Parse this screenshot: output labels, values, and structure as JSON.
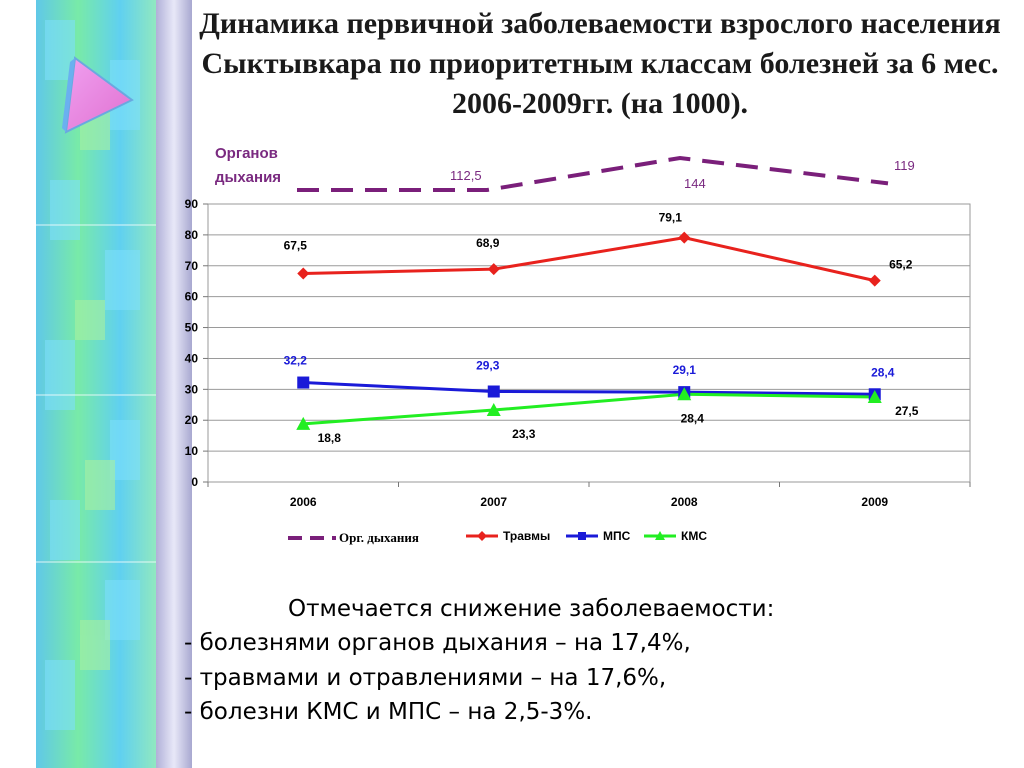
{
  "title": "Динамика первичной заболеваемости взрослого населения Сыктывкара по приоритетным классам болезней за 6 мес. 2006-2009гг. (на 1000).",
  "colors": {
    "org": "#7a1f7a",
    "trauma": "#e8221d",
    "mps": "#1a1ad8",
    "kms": "#22ee22",
    "org_label": "#7a2a80",
    "mps_label": "#1a1ad8"
  },
  "chart_data": [
    {
      "type": "line",
      "label": "Органов дыхания",
      "x": [
        "2006",
        "2007",
        "2008",
        "2009"
      ],
      "series": [
        {
          "name": "Орг. дыхания",
          "values": [
            null,
            112.5,
            144,
            119
          ],
          "style": "dashed"
        }
      ],
      "value_labels": [
        "",
        "112,5",
        "144",
        "119"
      ]
    },
    {
      "type": "line",
      "categories": [
        "2006",
        "2007",
        "2008",
        "2009"
      ],
      "ylim": [
        0,
        90
      ],
      "yticks": [
        "0",
        "10",
        "20",
        "30",
        "40",
        "50",
        "60",
        "70",
        "80",
        "90"
      ],
      "grid": true,
      "legend": "bottom",
      "series": [
        {
          "name": "Травмы",
          "values": [
            67.5,
            68.9,
            79.1,
            65.2
          ],
          "labels": [
            "67,5",
            "68,9",
            "79,1",
            "65,2"
          ],
          "marker": "diamond"
        },
        {
          "name": "МПС",
          "values": [
            32.2,
            29.3,
            29.1,
            28.4
          ],
          "labels": [
            "32,2",
            "29,3",
            "29,1",
            "28,4"
          ],
          "marker": "square"
        },
        {
          "name": "КМС",
          "values": [
            18.8,
            23.3,
            28.4,
            27.5
          ],
          "labels": [
            "18,8",
            "23,3",
            "28,4",
            "27,5"
          ],
          "marker": "triangle"
        }
      ]
    }
  ],
  "notes": {
    "heading": "Отмечается снижение заболеваемости:",
    "items": [
      "- болезнями органов дыхания – на 17,4%,",
      "- травмами и отравлениями – на 17,6%,",
      "- болезни КМС и МПС – на 2,5-3%."
    ]
  }
}
